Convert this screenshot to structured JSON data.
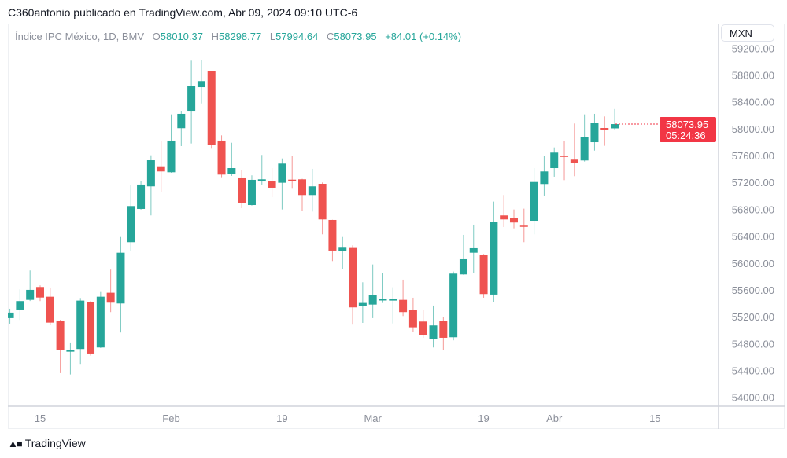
{
  "header": {
    "published": "C360antonio publicado en TradingView.com, Abr 09, 2024 09:10 UTC-6"
  },
  "legend": {
    "symbol": "Índice IPC México, 1D, BMV",
    "o_label": "O",
    "o_value": "58010.37",
    "h_label": "H",
    "h_value": "58298.77",
    "l_label": "L",
    "l_value": "57994.64",
    "c_label": "C",
    "c_value": "58073.95",
    "change": "+84.01 (+0.14%)"
  },
  "currency_button": "MXN",
  "last_price": {
    "price": "58073.95",
    "countdown": "05:24:36"
  },
  "footer": {
    "brand": "TradingView",
    "logo_mark": "TV"
  },
  "colors": {
    "up": "#26a69a",
    "down": "#ef5350",
    "last_price_bg": "#f23645",
    "axis_text": "#8b8f9a"
  },
  "chart_data": {
    "type": "candlestick",
    "title": "Índice IPC México, 1D, BMV",
    "xlabel": "",
    "ylabel": "",
    "ylim": [
      53900,
      59400
    ],
    "yticks": [
      54000,
      54400,
      54800,
      55200,
      55600,
      56000,
      56400,
      56800,
      57200,
      57600,
      58000,
      58400,
      58800,
      59200
    ],
    "ytick_labels": [
      "54000.00",
      "54400.00",
      "54800.00",
      "55200.00",
      "55600.00",
      "56000.00",
      "56400.00",
      "56800.00",
      "57200.00",
      "57600.00",
      "58000.00",
      "58400.00",
      "58800.00",
      "59200.00"
    ],
    "xlim": [
      -0.2,
      70.3
    ],
    "xticks": [
      {
        "index": 3,
        "label": "15"
      },
      {
        "index": 16,
        "label": "Feb"
      },
      {
        "index": 27,
        "label": "19"
      },
      {
        "index": 36,
        "label": "Mar"
      },
      {
        "index": 47,
        "label": "19"
      },
      {
        "index": 54,
        "label": "Abr"
      },
      {
        "index": 64,
        "label": "15"
      }
    ],
    "grid": false,
    "candles": [
      [
        55185,
        55325,
        55103,
        55267
      ],
      [
        55313,
        55614,
        55158,
        55439
      ],
      [
        55457,
        55895,
        55440,
        55606
      ],
      [
        55649,
        55673,
        55439,
        55492
      ],
      [
        55504,
        55641,
        55079,
        55118
      ],
      [
        55146,
        55160,
        54366,
        54705
      ],
      [
        54685,
        54822,
        54346,
        54705
      ],
      [
        54725,
        55485,
        54503,
        55446
      ],
      [
        55419,
        55439,
        54627,
        54658
      ],
      [
        54748,
        55574,
        54740,
        55504
      ],
      [
        55563,
        55907,
        55275,
        55415
      ],
      [
        55403,
        56393,
        54971,
        56159
      ],
      [
        56316,
        57162,
        56179,
        56854
      ],
      [
        56811,
        57232,
        56800,
        57174
      ],
      [
        57147,
        57610,
        56714,
        57536
      ],
      [
        57446,
        57829,
        57057,
        57369
      ],
      [
        57357,
        58219,
        57350,
        57829
      ],
      [
        58013,
        58273,
        57747,
        58227
      ],
      [
        58273,
        59019,
        57786,
        58644
      ],
      [
        58624,
        59026,
        58382,
        58715
      ],
      [
        58859,
        58860,
        57708,
        57759
      ],
      [
        57829,
        57907,
        57283,
        57322
      ],
      [
        57337,
        57797,
        57302,
        57419
      ],
      [
        57279,
        57388,
        56823,
        56901
      ],
      [
        56869,
        57311,
        56860,
        57244
      ],
      [
        57220,
        57615,
        57174,
        57252
      ],
      [
        57220,
        57419,
        56986,
        57127
      ],
      [
        57201,
        57563,
        56803,
        57486
      ],
      [
        57247,
        57603,
        57123,
        57229
      ],
      [
        57252,
        57260,
        56784,
        57018
      ],
      [
        57018,
        57408,
        56772,
        57147
      ],
      [
        57185,
        57205,
        56433,
        56655
      ],
      [
        56647,
        56650,
        56035,
        56191
      ],
      [
        56187,
        56393,
        55914,
        56234
      ],
      [
        56230,
        56269,
        55088,
        55345
      ],
      [
        55368,
        55719,
        55114,
        55411
      ],
      [
        55387,
        55984,
        55185,
        55532
      ],
      [
        55450,
        55855,
        55411,
        55465
      ],
      [
        55446,
        55645,
        55106,
        55469
      ],
      [
        55457,
        55758,
        55216,
        55275
      ],
      [
        55302,
        55489,
        54978,
        55048
      ],
      [
        55134,
        55313,
        54892,
        54931
      ],
      [
        54869,
        55372,
        54748,
        55076
      ],
      [
        55141,
        55196,
        54709,
        54892
      ],
      [
        54900,
        55879,
        54854,
        55848
      ],
      [
        55836,
        56425,
        55830,
        56062
      ],
      [
        56159,
        56577,
        55860,
        56226
      ],
      [
        56132,
        56140,
        55489,
        55544
      ],
      [
        55536,
        56920,
        55419,
        56616
      ],
      [
        56714,
        57018,
        56542,
        56655
      ],
      [
        56679,
        56803,
        56522,
        56609
      ],
      [
        56562,
        56815,
        56316,
        56545
      ],
      [
        56635,
        57419,
        56433,
        57212
      ],
      [
        57182,
        57595,
        57010,
        57369
      ],
      [
        57419,
        57727,
        57291,
        57650
      ],
      [
        57603,
        57829,
        57240,
        57587
      ],
      [
        57545,
        58083,
        57299,
        57501
      ],
      [
        57533,
        58219,
        57517,
        57884
      ],
      [
        57805,
        58227,
        57680,
        58090
      ],
      [
        58016,
        58188,
        57751,
        57989
      ],
      [
        58010.37,
        58298.77,
        57994.64,
        58073.95
      ]
    ],
    "candle_format": [
      "open",
      "high",
      "low",
      "close"
    ],
    "last_price": 58073.95
  }
}
